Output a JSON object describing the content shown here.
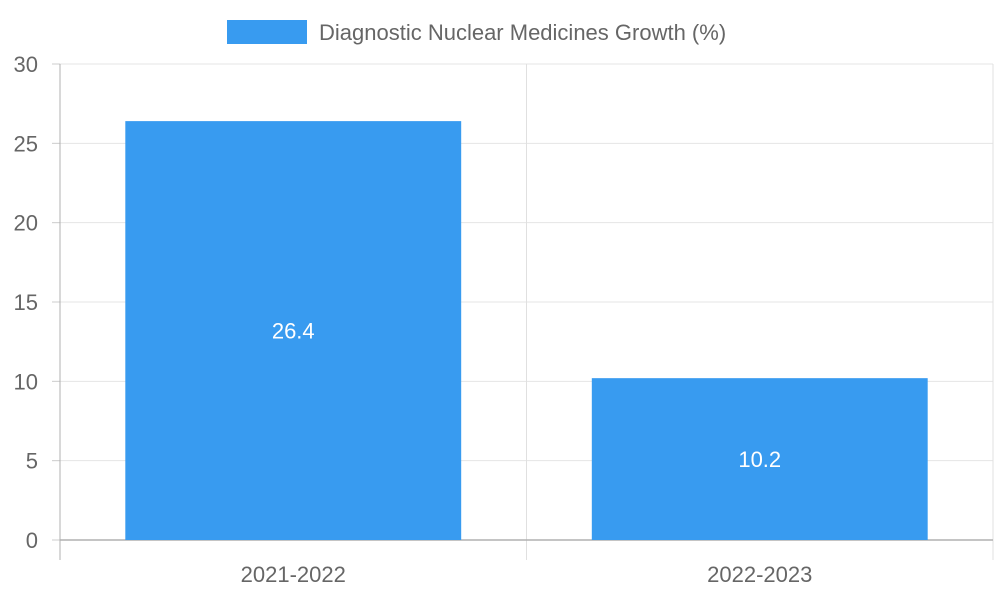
{
  "chart_data": {
    "type": "bar",
    "categories": [
      "2021-2022",
      "2022-2023"
    ],
    "series": [
      {
        "name": "Diagnostic Nuclear Medicines Growth (%)",
        "values": [
          26.4,
          10.2
        ],
        "color": "#389bf0"
      }
    ],
    "data_labels": [
      "26.4",
      "10.2"
    ],
    "ylim": [
      0,
      30
    ],
    "yticks": [
      0,
      5,
      10,
      15,
      20,
      25,
      30
    ],
    "ytick_labels": [
      "0",
      "5",
      "10",
      "15",
      "20",
      "25",
      "30"
    ],
    "grid": true,
    "legend_position": "top-center"
  }
}
